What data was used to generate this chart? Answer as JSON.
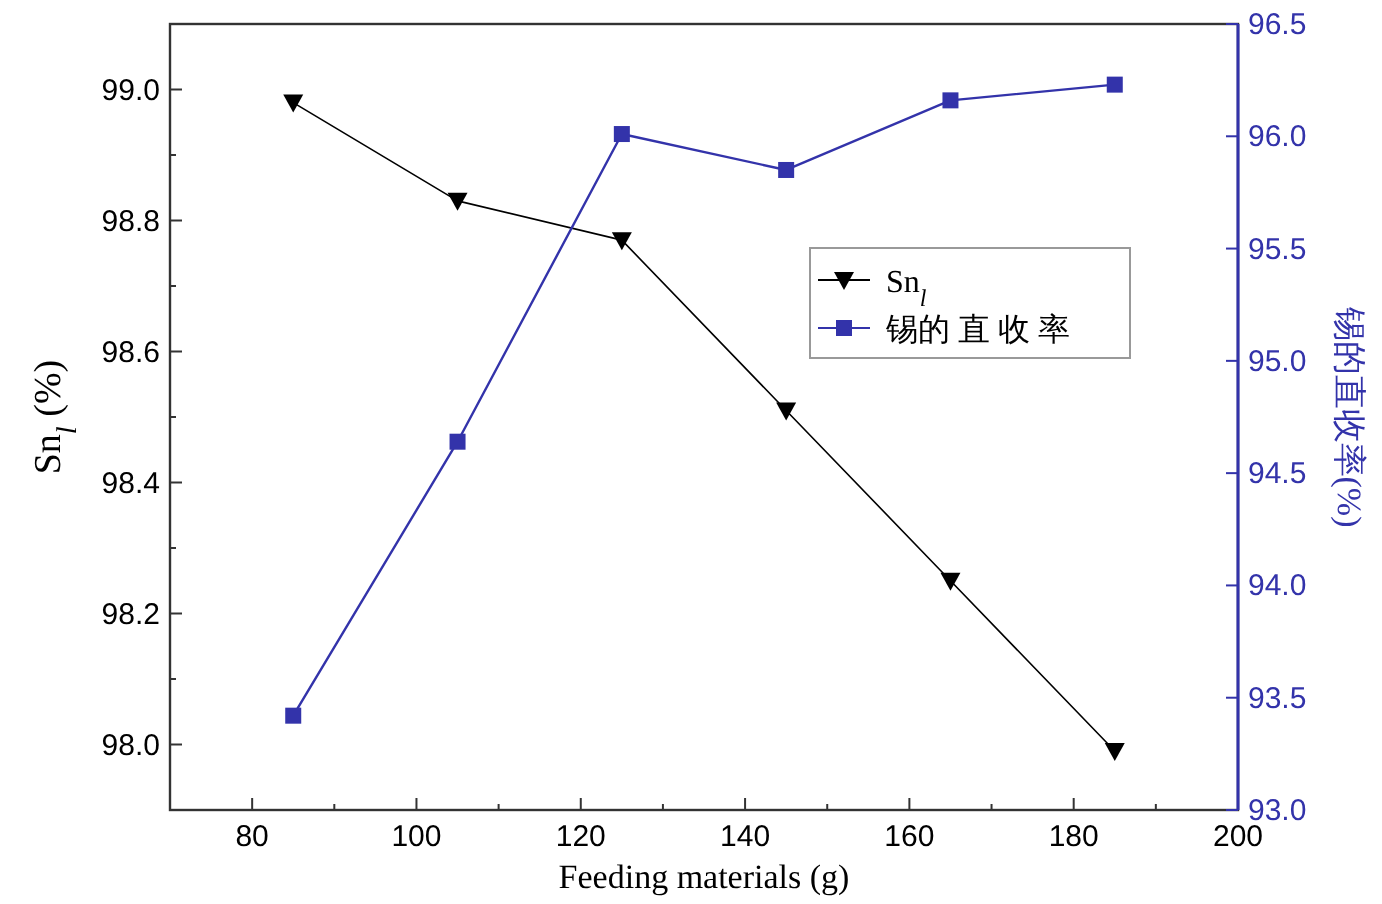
{
  "chart_data": {
    "type": "line",
    "xlabel": "Feeding materials (g)",
    "ylabel": "Sn$_{l}$ (%)",
    "y2label": "锡的直收率(%)",
    "x": [
      85,
      105,
      125,
      145,
      165,
      185
    ],
    "series": [
      {
        "name": "Sn$_{l}$",
        "color": "#000000",
        "marker": "triangle",
        "values": [
          98.98,
          98.83,
          98.77,
          98.51,
          98.25,
          97.99
        ]
      },
      {
        "name": "锡的 直 收 率",
        "color": "#3333aa",
        "marker": "square",
        "axis": "y2",
        "values": [
          93.42,
          94.64,
          96.01,
          95.85,
          96.16,
          96.23
        ]
      }
    ],
    "xlim": [
      70,
      200
    ],
    "xticks": [
      80,
      {
        "value": 90,
        "label": null
      },
      100,
      {
        "value": 110,
        "label": null
      },
      120,
      {
        "value": 130,
        "label": null
      },
      140,
      {
        "value": 150,
        "label": null
      },
      160,
      {
        "value": 170,
        "label": null
      },
      180,
      {
        "value": 190,
        "label": null
      },
      200
    ],
    "ylim": [
      97.9,
      99.1
    ],
    "yticks": [
      {
        "value": 98,
        "label": "98.0"
      },
      {
        "value": 98.1,
        "label": null
      },
      {
        "value": 98.2,
        "label": "98.2"
      },
      {
        "value": 98.3,
        "label": null
      },
      {
        "value": 98.4,
        "label": "98.4"
      },
      {
        "value": 98.5,
        "label": null
      },
      {
        "value": 98.6,
        "label": "98.6"
      },
      {
        "value": 98.7,
        "label": null
      },
      {
        "value": 98.8,
        "label": "98.8"
      },
      {
        "value": 98.9,
        "label": null
      },
      {
        "value": 99,
        "label": "99.0"
      }
    ],
    "y2lim": [
      93,
      96.5
    ],
    "y2ticks": [
      {
        "value": 93,
        "label": "93.0"
      },
      93.5,
      {
        "value": 94,
        "label": "94.0"
      },
      94.5,
      {
        "value": 95,
        "label": "95.0"
      },
      95.5,
      {
        "value": 96,
        "label": "96.0"
      },
      96.5
    ],
    "legend": "right",
    "grid": false
  }
}
